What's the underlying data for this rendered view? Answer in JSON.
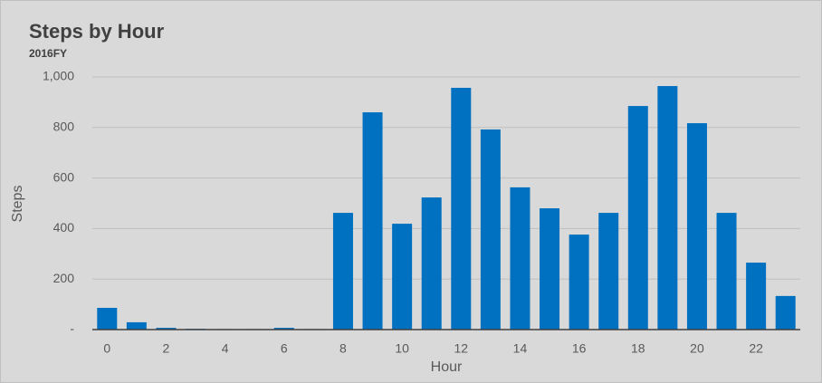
{
  "chart_data": {
    "type": "bar",
    "title": "Steps by Hour",
    "subtitle": "2016FY",
    "x_label": "Hour",
    "y_label": "Steps",
    "categories": [
      "0",
      null,
      "2",
      null,
      "4",
      null,
      "6",
      null,
      "8",
      null,
      "10",
      null,
      "12",
      null,
      "14",
      null,
      "16",
      null,
      "18",
      null,
      "20",
      null,
      "22",
      null
    ],
    "values": [
      86,
      29,
      7,
      3,
      2,
      2,
      7,
      2,
      462,
      860,
      419,
      523,
      957,
      792,
      563,
      480,
      376,
      462,
      885,
      964,
      817,
      462,
      265,
      133
    ],
    "color": "#0070c0",
    "ylim": [
      0,
      1000
    ],
    "yticks": [
      {
        "value": 0,
        "label": "-"
      },
      200,
      400,
      600,
      800,
      {
        "value": 1000,
        "label": "1,000"
      }
    ],
    "grid": true
  }
}
